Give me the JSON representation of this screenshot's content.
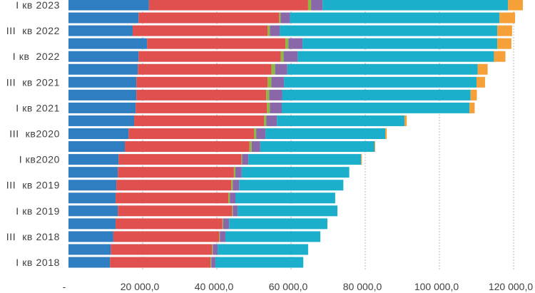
{
  "chart_data": {
    "type": "bar",
    "orientation": "horizontal",
    "stacked": true,
    "title": "",
    "xlabel": "",
    "ylabel": "",
    "xlim": [
      0,
      120000
    ],
    "grid": "vertical-dotted",
    "legend": "none",
    "x_ticks": [
      0,
      20000,
      40000,
      60000,
      80000,
      100000,
      120000
    ],
    "x_tick_labels": [
      "-",
      "20 000,0",
      "40 000,0",
      "60 000,0",
      "80 000,0",
      "100 000,0",
      "120 000,0"
    ],
    "categories": [
      "I кв 2023",
      "",
      "III  кв 2022",
      "",
      "I кв  2022",
      "",
      "III  кв 2021",
      "",
      "I кв 2021",
      "",
      "III  кв2020",
      "",
      "I кв2020",
      "",
      "III  кв 2019",
      "",
      "I кв 2019",
      "",
      "III  кв 2018",
      "",
      "I кв 2018"
    ],
    "series": [
      {
        "color": "#2F7EC1",
        "values": [
          21700,
          18900,
          17300,
          21200,
          18900,
          18700,
          18300,
          18300,
          18100,
          17700,
          16200,
          15200,
          13500,
          13300,
          12900,
          12700,
          13300,
          12700,
          12100,
          11400,
          11200
        ]
      },
      {
        "color": "#E0504E",
        "values": [
          42900,
          37900,
          36400,
          37300,
          38300,
          36000,
          35400,
          35000,
          35400,
          35000,
          33800,
          33600,
          33100,
          31300,
          31000,
          30400,
          30800,
          28800,
          28500,
          27300,
          27100
        ]
      },
      {
        "color": "#8DB843",
        "values": [
          800,
          400,
          600,
          800,
          800,
          1000,
          1000,
          800,
          800,
          600,
          600,
          600,
          200,
          400,
          400,
          400,
          200,
          200,
          200,
          200,
          200
        ]
      },
      {
        "color": "#8967A8",
        "values": [
          3100,
          2500,
          2700,
          3800,
          3800,
          3300,
          3400,
          3500,
          3200,
          2900,
          2500,
          2300,
          1700,
          1700,
          1700,
          1500,
          1300,
          1600,
          1500,
          1300,
          1100
        ]
      },
      {
        "color": "#1BAFCB",
        "values": [
          50000,
          56500,
          58600,
          52500,
          52900,
          51300,
          51900,
          50800,
          50600,
          34400,
          32300,
          30800,
          30400,
          29000,
          28100,
          26900,
          26900,
          26500,
          25600,
          24400,
          23700
        ]
      },
      {
        "color": "#F6A03A",
        "values": [
          4000,
          4200,
          4000,
          3800,
          3100,
          2700,
          2300,
          1700,
          1400,
          600,
          400,
          200,
          200,
          0,
          0,
          0,
          0,
          0,
          0,
          0,
          0
        ]
      }
    ]
  }
}
